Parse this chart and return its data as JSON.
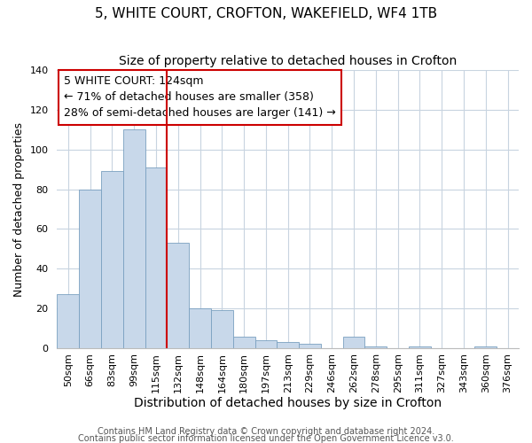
{
  "title": "5, WHITE COURT, CROFTON, WAKEFIELD, WF4 1TB",
  "subtitle": "Size of property relative to detached houses in Crofton",
  "xlabel": "Distribution of detached houses by size in Crofton",
  "ylabel": "Number of detached properties",
  "bar_labels": [
    "50sqm",
    "66sqm",
    "83sqm",
    "99sqm",
    "115sqm",
    "132sqm",
    "148sqm",
    "164sqm",
    "180sqm",
    "197sqm",
    "213sqm",
    "229sqm",
    "246sqm",
    "262sqm",
    "278sqm",
    "295sqm",
    "311sqm",
    "327sqm",
    "343sqm",
    "360sqm",
    "376sqm"
  ],
  "bar_values": [
    27,
    80,
    89,
    110,
    91,
    53,
    20,
    19,
    6,
    4,
    3,
    2,
    0,
    6,
    1,
    0,
    1,
    0,
    0,
    1,
    0
  ],
  "bar_color": "#c8d8ea",
  "bar_edge_color": "#7aa0c0",
  "vline_x_idx": 5,
  "vline_color": "#cc0000",
  "ylim": [
    0,
    140
  ],
  "annotation_title": "5 WHITE COURT: 124sqm",
  "annotation_line1": "← 71% of detached houses are smaller (358)",
  "annotation_line2": "28% of semi-detached houses are larger (141) →",
  "annotation_box_color": "#cc0000",
  "footer_line1": "Contains HM Land Registry data © Crown copyright and database right 2024.",
  "footer_line2": "Contains public sector information licensed under the Open Government Licence v3.0.",
  "background_color": "#ffffff",
  "grid_color": "#c8d4e0",
  "title_fontsize": 11,
  "subtitle_fontsize": 10,
  "xlabel_fontsize": 10,
  "ylabel_fontsize": 9,
  "tick_fontsize": 8,
  "annotation_fontsize": 9,
  "footer_fontsize": 7
}
